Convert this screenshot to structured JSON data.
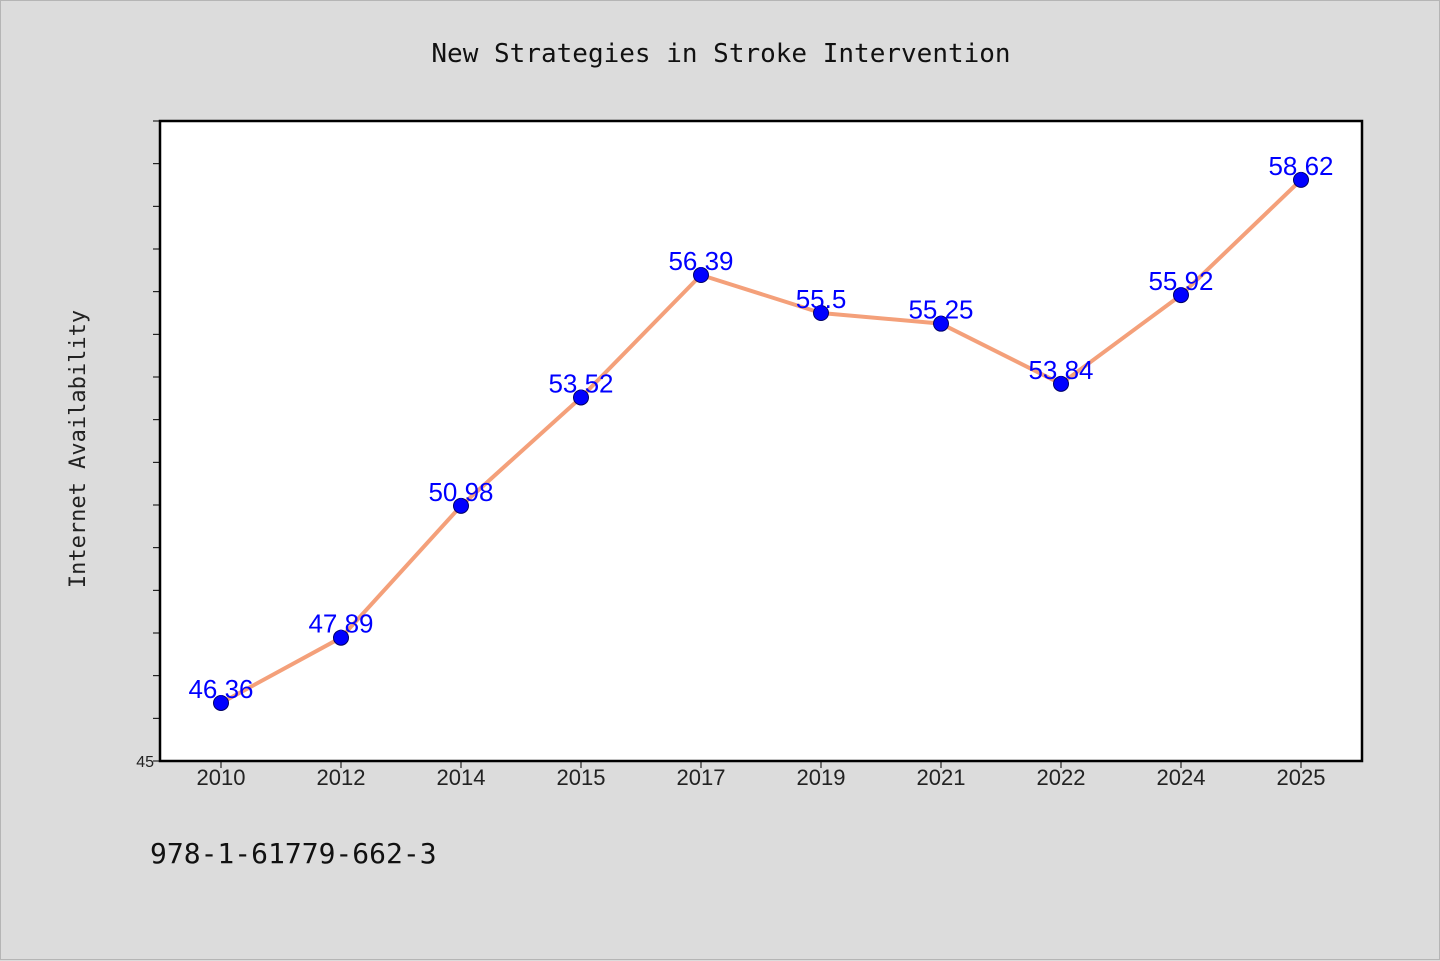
{
  "chart_data": {
    "type": "line",
    "title": "New Strategies in Stroke Intervention",
    "xlabel": "",
    "ylabel": "Internet Availability",
    "categories": [
      "2010",
      "2012",
      "2014",
      "2015",
      "2017",
      "2019",
      "2021",
      "2022",
      "2024",
      "2025"
    ],
    "series": [
      {
        "values": [
          46.36,
          47.89,
          50.98,
          53.52,
          56.39,
          55.5,
          55.25,
          53.84,
          55.92,
          58.62
        ],
        "data_labels": [
          "46.36",
          "47.89",
          "50.98",
          "53.52",
          "56.39",
          "55.5",
          "55.25",
          "53.84",
          "55.92",
          "58.62"
        ]
      }
    ],
    "ylim": [
      45,
      60
    ],
    "y_tick_labels": [
      "45"
    ],
    "grid": false,
    "line_color": "#f4a07a",
    "marker_color": "#0000ff",
    "label_color": "#0000ff"
  },
  "footer": {
    "note": "978-1-61779-662-3"
  }
}
